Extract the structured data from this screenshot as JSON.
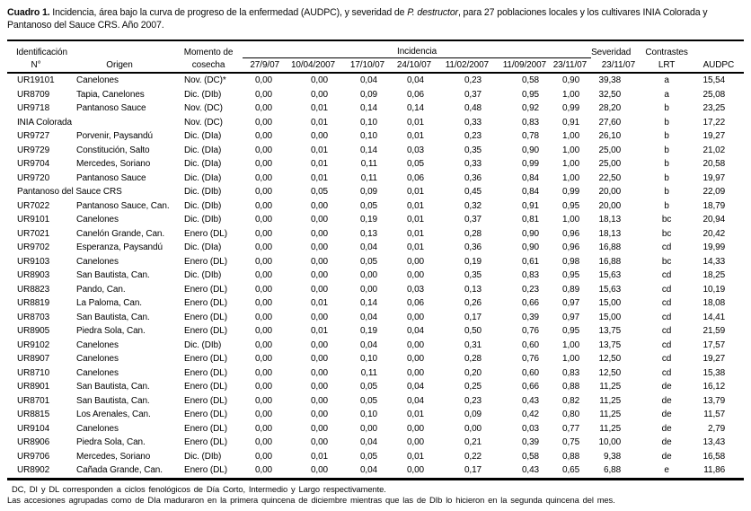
{
  "caption": {
    "label": "Cuadro 1.",
    "before_italic": " Incidencia, área bajo la curva de progreso de la enfermedad (AUDPC), y severidad de ",
    "italic": "P. destructor",
    "after_italic": ", para 27 poblaciones locales y los cultivares INIA Colorada y Pantanoso del Sauce CRS. Año 2007."
  },
  "header": {
    "group_identificacion": "Identificación",
    "col_numero": "N°",
    "col_origen": "Origen",
    "momento_line1": "Momento de",
    "momento_line2": "cosecha",
    "group_incidencia": "Incidencia",
    "incidencia_dates": [
      "27/9/07",
      "10/04/2007",
      "17/10/07",
      "24/10/07",
      "11/02/2007",
      "11/09/2007",
      "23/11/07"
    ],
    "group_severidad": "Severidad",
    "severidad_date": "23/11/07",
    "group_contrastes": "Contrastes",
    "col_lrt": "LRT",
    "col_audpc": "AUDPC"
  },
  "rows": [
    {
      "id": "UR19101",
      "origen": "Canelones",
      "momento": "Nov. (DC)*",
      "incidencia": [
        "0,00",
        "0,00",
        "0,04",
        "0,04",
        "0,23",
        "0,58",
        "0,90"
      ],
      "severidad": "39,38",
      "lrt": "a",
      "audpc": "15,54"
    },
    {
      "id": "UR8709",
      "origen": "Tapia, Canelones",
      "momento": "Dic. (DIb)",
      "incidencia": [
        "0,00",
        "0,00",
        "0,09",
        "0,06",
        "0,37",
        "0,95",
        "1,00"
      ],
      "severidad": "32,50",
      "lrt": "a",
      "audpc": "25,08"
    },
    {
      "id": "UR9718",
      "origen": "Pantanoso Sauce",
      "momento": "Nov. (DC)",
      "incidencia": [
        "0,00",
        "0,01",
        "0,14",
        "0,14",
        "0,48",
        "0,92",
        "0,99"
      ],
      "severidad": "28,20",
      "lrt": "b",
      "audpc": "23,25"
    },
    {
      "id": "INIA Colorada",
      "origen": "",
      "momento": "Nov. (DC)",
      "incidencia": [
        "0,00",
        "0,01",
        "0,10",
        "0,01",
        "0,33",
        "0,83",
        "0,91"
      ],
      "severidad": "27,60",
      "lrt": "b",
      "audpc": "17,22"
    },
    {
      "id": "UR9727",
      "origen": "Porvenir, Paysandú",
      "momento": "Dic. (DIa)",
      "incidencia": [
        "0,00",
        "0,00",
        "0,10",
        "0,01",
        "0,23",
        "0,78",
        "1,00"
      ],
      "severidad": "26,10",
      "lrt": "b",
      "audpc": "19,27"
    },
    {
      "id": "UR9729",
      "origen": "Constitución, Salto",
      "momento": "Dic. (DIa)",
      "incidencia": [
        "0,00",
        "0,01",
        "0,14",
        "0,03",
        "0,35",
        "0,90",
        "1,00"
      ],
      "severidad": "25,00",
      "lrt": "b",
      "audpc": "21,02"
    },
    {
      "id": "UR9704",
      "origen": "Mercedes, Soriano",
      "momento": "Dic. (DIa)",
      "incidencia": [
        "0,00",
        "0,01",
        "0,11",
        "0,05",
        "0,33",
        "0,99",
        "1,00"
      ],
      "severidad": "25,00",
      "lrt": "b",
      "audpc": "20,58"
    },
    {
      "id": "UR9720",
      "origen": "Pantanoso Sauce",
      "momento": "Dic. (DIa)",
      "incidencia": [
        "0,00",
        "0,01",
        "0,11",
        "0,06",
        "0,36",
        "0,84",
        "1,00"
      ],
      "severidad": "22,50",
      "lrt": "b",
      "audpc": "19,97"
    },
    {
      "id": "Pantanoso del Sauce CRS",
      "origen": "",
      "momento": "Dic. (DIb)",
      "incidencia": [
        "0,00",
        "0,05",
        "0,09",
        "0,01",
        "0,45",
        "0,84",
        "0,99"
      ],
      "severidad": "20,00",
      "lrt": "b",
      "audpc": "22,09"
    },
    {
      "id": "UR7022",
      "origen": "Pantanoso Sauce, Can.",
      "momento": "Dic. (DIb)",
      "incidencia": [
        "0,00",
        "0,00",
        "0,05",
        "0,01",
        "0,32",
        "0,91",
        "0,95"
      ],
      "severidad": "20,00",
      "lrt": "b",
      "audpc": "18,79"
    },
    {
      "id": "UR9101",
      "origen": "Canelones",
      "momento": "Dic. (DIb)",
      "incidencia": [
        "0,00",
        "0,00",
        "0,19",
        "0,01",
        "0,37",
        "0,81",
        "1,00"
      ],
      "severidad": "18,13",
      "lrt": "bc",
      "audpc": "20,94"
    },
    {
      "id": "UR7021",
      "origen": "Canelón Grande, Can.",
      "momento": "Enero (DL)",
      "incidencia": [
        "0,00",
        "0,00",
        "0,13",
        "0,01",
        "0,28",
        "0,90",
        "0,96"
      ],
      "severidad": "18,13",
      "lrt": "bc",
      "audpc": "20,42"
    },
    {
      "id": "UR9702",
      "origen": "Esperanza, Paysandú",
      "momento": "Dic. (DIa)",
      "incidencia": [
        "0,00",
        "0,00",
        "0,04",
        "0,01",
        "0,36",
        "0,90",
        "0,96"
      ],
      "severidad": "16,88",
      "lrt": "cd",
      "audpc": "19,99"
    },
    {
      "id": "UR9103",
      "origen": "Canelones",
      "momento": "Enero (DL)",
      "incidencia": [
        "0,00",
        "0,00",
        "0,05",
        "0,00",
        "0,19",
        "0,61",
        "0,98"
      ],
      "severidad": "16,88",
      "lrt": "bc",
      "audpc": "14,33"
    },
    {
      "id": "UR8903",
      "origen": "San Bautista, Can.",
      "momento": "Dic. (DIb)",
      "incidencia": [
        "0,00",
        "0,00",
        "0,00",
        "0,00",
        "0,35",
        "0,83",
        "0,95"
      ],
      "severidad": "15,63",
      "lrt": "cd",
      "audpc": "18,25"
    },
    {
      "id": "UR8823",
      "origen": "Pando, Can.",
      "momento": "Enero (DL)",
      "incidencia": [
        "0,00",
        "0,00",
        "0,00",
        "0,03",
        "0,13",
        "0,23",
        "0,89"
      ],
      "severidad": "15,63",
      "lrt": "cd",
      "audpc": "10,19"
    },
    {
      "id": "UR8819",
      "origen": "La Paloma, Can.",
      "momento": "Enero (DL)",
      "incidencia": [
        "0,00",
        "0,01",
        "0,14",
        "0,06",
        "0,26",
        "0,66",
        "0,97"
      ],
      "severidad": "15,00",
      "lrt": "cd",
      "audpc": "18,08"
    },
    {
      "id": "UR8703",
      "origen": "San Bautista, Can.",
      "momento": "Enero (DL)",
      "incidencia": [
        "0,00",
        "0,00",
        "0,04",
        "0,00",
        "0,17",
        "0,39",
        "0,97"
      ],
      "severidad": "15,00",
      "lrt": "cd",
      "audpc": "14,41"
    },
    {
      "id": "UR8905",
      "origen": "Piedra Sola, Can.",
      "momento": "Enero (DL)",
      "incidencia": [
        "0,00",
        "0,01",
        "0,19",
        "0,04",
        "0,50",
        "0,76",
        "0,95"
      ],
      "severidad": "13,75",
      "lrt": "cd",
      "audpc": "21,59"
    },
    {
      "id": "UR9102",
      "origen": "Canelones",
      "momento": "Dic. (DIb)",
      "incidencia": [
        "0,00",
        "0,00",
        "0,04",
        "0,00",
        "0,31",
        "0,60",
        "1,00"
      ],
      "severidad": "13,75",
      "lrt": "cd",
      "audpc": "17,57"
    },
    {
      "id": "UR8907",
      "origen": "Canelones",
      "momento": "Enero (DL)",
      "incidencia": [
        "0,00",
        "0,00",
        "0,10",
        "0,00",
        "0,28",
        "0,76",
        "1,00"
      ],
      "severidad": "12,50",
      "lrt": "cd",
      "audpc": "19,27"
    },
    {
      "id": "UR8710",
      "origen": "Canelones",
      "momento": "Enero (DL)",
      "incidencia": [
        "0,00",
        "0,00",
        "0,11",
        "0,00",
        "0,20",
        "0,60",
        "0,83"
      ],
      "severidad": "12,50",
      "lrt": "cd",
      "audpc": "15,38"
    },
    {
      "id": "UR8901",
      "origen": "San Bautista, Can.",
      "momento": "Enero (DL)",
      "incidencia": [
        "0,00",
        "0,00",
        "0,05",
        "0,04",
        "0,25",
        "0,66",
        "0,88"
      ],
      "severidad": "11,25",
      "lrt": "de",
      "audpc": "16,12"
    },
    {
      "id": "UR8701",
      "origen": "San Bautista, Can.",
      "momento": "Enero (DL)",
      "incidencia": [
        "0,00",
        "0,00",
        "0,05",
        "0,04",
        "0,23",
        "0,43",
        "0,82"
      ],
      "severidad": "11,25",
      "lrt": "de",
      "audpc": "13,79"
    },
    {
      "id": "UR8815",
      "origen": "Los Arenales, Can.",
      "momento": "Enero (DL)",
      "incidencia": [
        "0,00",
        "0,00",
        "0,10",
        "0,01",
        "0,09",
        "0,42",
        "0,80"
      ],
      "severidad": "11,25",
      "lrt": "de",
      "audpc": "11,57"
    },
    {
      "id": "UR9104",
      "origen": "Canelones",
      "momento": "Enero (DL)",
      "incidencia": [
        "0,00",
        "0,00",
        "0,00",
        "0,00",
        "0,00",
        "0,03",
        "0,77"
      ],
      "severidad": "11,25",
      "lrt": "de",
      "audpc": "2,79"
    },
    {
      "id": "UR8906",
      "origen": "Piedra Sola, Can.",
      "momento": "Enero (DL)",
      "incidencia": [
        "0,00",
        "0,00",
        "0,04",
        "0,00",
        "0,21",
        "0,39",
        "0,75"
      ],
      "severidad": "10,00",
      "lrt": "de",
      "audpc": "13,43"
    },
    {
      "id": "UR9706",
      "origen": "Mercedes, Soriano",
      "momento": "Dic. (DIb)",
      "incidencia": [
        "0,00",
        "0,01",
        "0,05",
        "0,01",
        "0,22",
        "0,58",
        "0,88"
      ],
      "severidad": "9,38",
      "lrt": "de",
      "audpc": "16,58"
    },
    {
      "id": "UR8902",
      "origen": "Cañada Grande, Can.",
      "momento": "Enero (DL)",
      "incidencia": [
        "0,00",
        "0,00",
        "0,04",
        "0,00",
        "0,17",
        "0,43",
        "0,65"
      ],
      "severidad": "6,88",
      "lrt": "e",
      "audpc": "11,86"
    }
  ],
  "footnotes": [
    "DC, DI y DL corresponden a ciclos fenológicos de Día Corto, Intermedio y Largo respectivamente.",
    "Las accesiones agrupadas como de DIa maduraron en la primera quincena de diciembre mientras que las de DIb lo hicieron en la segunda quincena del mes."
  ]
}
